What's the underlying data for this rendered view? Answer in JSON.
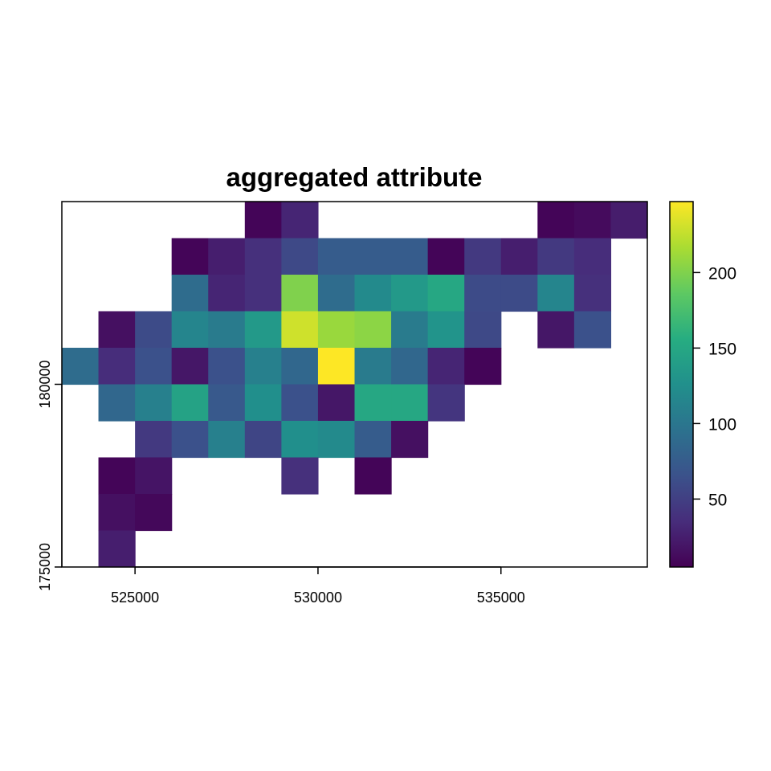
{
  "chart_data": {
    "type": "heatmap",
    "title": "aggregated attribute",
    "xlabel": "",
    "ylabel": "",
    "xlim": [
      523000,
      539000
    ],
    "ylim": [
      175000,
      185000
    ],
    "cell_size": 1000,
    "x_ticks": [
      525000,
      530000,
      535000
    ],
    "x_tick_labels": [
      "525000",
      "530000",
      "535000"
    ],
    "y_ticks": [
      175000,
      180000
    ],
    "y_tick_labels": [
      "175000",
      "180000"
    ],
    "color_scale": {
      "name": "viridis",
      "min": 5,
      "max": 247,
      "ticks": [
        50,
        100,
        150,
        200
      ],
      "tick_labels": [
        "50",
        "100",
        "150",
        "200"
      ]
    },
    "grid": false,
    "legend": "right",
    "columns_x_min": [
      523000,
      524000,
      525000,
      526000,
      527000,
      528000,
      529000,
      530000,
      531000,
      532000,
      533000,
      534000,
      535000,
      536000,
      537000,
      538000
    ],
    "rows_y_max": [
      185000,
      184000,
      183000,
      182000,
      181000,
      180000,
      179000,
      178000,
      177000,
      176000
    ],
    "values": [
      [
        null,
        null,
        null,
        null,
        null,
        8,
        30,
        null,
        null,
        null,
        null,
        null,
        null,
        8,
        12,
        24
      ],
      [
        null,
        null,
        null,
        8,
        25,
        38,
        58,
        75,
        75,
        75,
        8,
        45,
        25,
        45,
        35,
        null
      ],
      [
        null,
        null,
        null,
        90,
        30,
        38,
        200,
        90,
        120,
        135,
        150,
        60,
        60,
        115,
        38,
        null
      ],
      [
        null,
        15,
        60,
        115,
        105,
        135,
        230,
        210,
        205,
        105,
        130,
        58,
        null,
        20,
        65,
        null
      ],
      [
        90,
        35,
        65,
        20,
        65,
        110,
        85,
        247,
        105,
        85,
        30,
        8,
        null,
        null,
        null,
        null
      ],
      [
        null,
        85,
        110,
        145,
        72,
        125,
        65,
        20,
        150,
        150,
        42,
        null,
        null,
        null,
        null,
        null
      ],
      [
        null,
        null,
        45,
        65,
        110,
        55,
        125,
        120,
        75,
        15,
        null,
        null,
        null,
        null,
        null,
        null
      ],
      [
        null,
        8,
        18,
        null,
        null,
        null,
        38,
        null,
        8,
        null,
        null,
        null,
        null,
        null,
        null,
        null
      ],
      [
        null,
        15,
        10,
        null,
        null,
        null,
        null,
        null,
        null,
        null,
        null,
        null,
        null,
        null,
        null,
        null
      ],
      [
        null,
        25,
        null,
        null,
        null,
        null,
        null,
        null,
        null,
        null,
        null,
        null,
        null,
        null,
        null,
        null
      ]
    ]
  }
}
